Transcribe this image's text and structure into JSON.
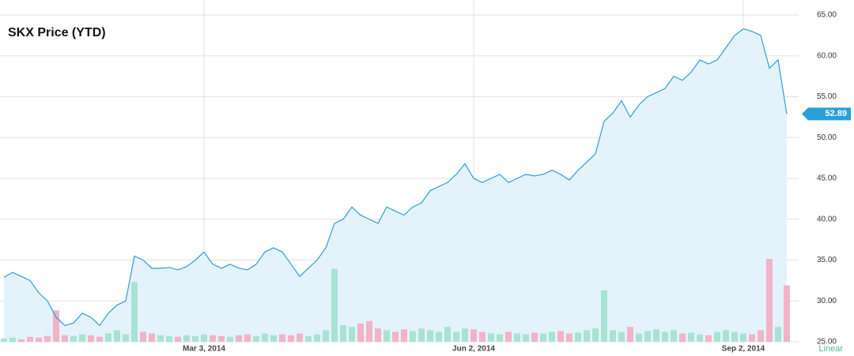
{
  "chart_data": {
    "type": "line",
    "title": "SKX Price (YTD)",
    "categories": [
      null,
      null,
      null,
      null,
      null,
      null,
      null,
      null,
      null,
      null,
      null,
      null,
      null,
      null,
      null,
      null,
      null,
      null,
      null,
      null,
      null,
      null,
      null,
      "Mar 3, 2014",
      null,
      null,
      null,
      null,
      null,
      null,
      null,
      null,
      null,
      null,
      null,
      null,
      null,
      null,
      null,
      null,
      null,
      null,
      null,
      null,
      null,
      null,
      null,
      null,
      null,
      null,
      null,
      null,
      null,
      null,
      "Jun 2, 2014",
      null,
      null,
      null,
      null,
      null,
      null,
      null,
      null,
      null,
      null,
      null,
      null,
      null,
      null,
      null,
      null,
      null,
      null,
      null,
      null,
      null,
      null,
      null,
      null,
      null,
      null,
      null,
      null,
      null,
      null,
      "Sep 2, 2014",
      null,
      null,
      null,
      null,
      null
    ],
    "series": [
      {
        "name": "SKX",
        "color": "#2a9fd8",
        "values": [
          32.9,
          33.5,
          33.0,
          32.5,
          31.0,
          30.0,
          28.0,
          27.0,
          27.3,
          28.5,
          28.0,
          27.0,
          28.5,
          29.5,
          30.0,
          35.5,
          35.0,
          34.0,
          34.0,
          34.1,
          33.8,
          34.2,
          35.0,
          36.0,
          34.5,
          34.0,
          34.5,
          34.0,
          33.8,
          34.5,
          36.0,
          36.5,
          36.0,
          34.5,
          33.0,
          34.0,
          35.0,
          36.5,
          39.5,
          40.0,
          41.5,
          40.5,
          40.0,
          39.5,
          41.5,
          41.0,
          40.5,
          41.5,
          42.0,
          43.5,
          44.0,
          44.5,
          45.5,
          46.8,
          45.0,
          44.5,
          45.0,
          45.5,
          44.5,
          45.0,
          45.5,
          45.3,
          45.5,
          46.0,
          45.5,
          44.8,
          46.0,
          47.0,
          48.0,
          52.0,
          53.0,
          54.5,
          52.5,
          54.0,
          55.0,
          55.5,
          56.0,
          57.5,
          57.0,
          58.0,
          59.5,
          59.0,
          59.5,
          61.0,
          62.5,
          63.3,
          63.0,
          62.5,
          58.5,
          59.5,
          52.89
        ]
      }
    ],
    "volume": [
      4,
      5,
      3,
      6,
      5,
      7,
      38,
      8,
      7,
      9,
      8,
      6,
      10,
      14,
      9,
      72,
      12,
      10,
      8,
      7,
      6,
      8,
      7,
      9,
      8,
      7,
      6,
      8,
      9,
      7,
      10,
      8,
      9,
      8,
      10,
      7,
      9,
      14,
      88,
      20,
      18,
      22,
      25,
      16,
      14,
      12,
      15,
      13,
      16,
      14,
      12,
      18,
      12,
      16,
      15,
      12,
      10,
      9,
      12,
      10,
      9,
      11,
      10,
      12,
      13,
      10,
      11,
      14,
      16,
      62,
      14,
      12,
      18,
      10,
      13,
      15,
      12,
      14,
      10,
      11,
      9,
      8,
      12,
      14,
      12,
      10,
      9,
      14,
      100,
      18,
      68
    ],
    "ylim": [
      25,
      65
    ],
    "yticks": [
      {
        "value": 25,
        "label": "25.00"
      },
      {
        "value": 30,
        "label": "30.00"
      },
      {
        "value": 35,
        "label": "35.00"
      },
      {
        "value": 40,
        "label": "40.00"
      },
      {
        "value": 45,
        "label": "45.00"
      },
      {
        "value": 50,
        "label": "50.00"
      },
      {
        "value": 55,
        "label": "55.00"
      },
      {
        "value": 60,
        "label": "60.00"
      },
      {
        "value": 65,
        "label": "65.00"
      }
    ],
    "grid": true,
    "scale_label": "Linear"
  }
}
